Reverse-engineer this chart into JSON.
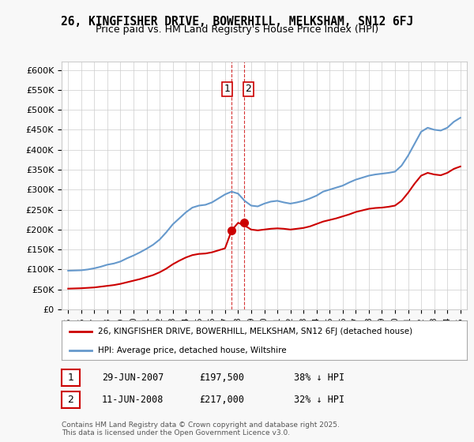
{
  "title": "26, KINGFISHER DRIVE, BOWERHILL, MELKSHAM, SN12 6FJ",
  "subtitle": "Price paid vs. HM Land Registry's House Price Index (HPI)",
  "legend_line1": "26, KINGFISHER DRIVE, BOWERHILL, MELKSHAM, SN12 6FJ (detached house)",
  "legend_line2": "HPI: Average price, detached house, Wiltshire",
  "footnote": "Contains HM Land Registry data © Crown copyright and database right 2025.\nThis data is licensed under the Open Government Licence v3.0.",
  "purchase1_date": "29-JUN-2007",
  "purchase1_price": 197500,
  "purchase1_hpi": "38% ↓ HPI",
  "purchase2_date": "11-JUN-2008",
  "purchase2_price": 217000,
  "purchase2_hpi": "32% ↓ HPI",
  "purchase1_x": 2007.49,
  "purchase2_x": 2008.44,
  "red_color": "#cc0000",
  "blue_color": "#6699cc",
  "vline_color": "#cc0000",
  "ylim": [
    0,
    620000
  ],
  "yticks": [
    0,
    50000,
    100000,
    150000,
    200000,
    250000,
    300000,
    350000,
    400000,
    450000,
    500000,
    550000,
    600000
  ],
  "xlim": [
    1994.5,
    2025.5
  ],
  "background_color": "#f8f8f8",
  "plot_bg": "#ffffff",
  "hpi_years": [
    1995,
    1995.5,
    1996,
    1996.5,
    1997,
    1997.5,
    1998,
    1998.5,
    1999,
    1999.5,
    2000,
    2000.5,
    2001,
    2001.5,
    2002,
    2002.5,
    2003,
    2003.5,
    2004,
    2004.5,
    2005,
    2005.5,
    2006,
    2006.5,
    2007,
    2007.5,
    2008,
    2008.5,
    2009,
    2009.5,
    2010,
    2010.5,
    2011,
    2011.5,
    2012,
    2012.5,
    2013,
    2013.5,
    2014,
    2014.5,
    2015,
    2015.5,
    2016,
    2016.5,
    2017,
    2017.5,
    2018,
    2018.5,
    2019,
    2019.5,
    2020,
    2020.5,
    2021,
    2021.5,
    2022,
    2022.5,
    2023,
    2023.5,
    2024,
    2024.5,
    2025
  ],
  "hpi_values": [
    97000,
    97500,
    98000,
    100000,
    103000,
    107000,
    112000,
    115000,
    120000,
    128000,
    135000,
    143000,
    152000,
    162000,
    175000,
    193000,
    213000,
    228000,
    243000,
    255000,
    260000,
    262000,
    268000,
    278000,
    288000,
    295000,
    290000,
    272000,
    260000,
    258000,
    265000,
    270000,
    272000,
    268000,
    265000,
    268000,
    272000,
    278000,
    285000,
    295000,
    300000,
    305000,
    310000,
    318000,
    325000,
    330000,
    335000,
    338000,
    340000,
    342000,
    345000,
    360000,
    385000,
    415000,
    445000,
    455000,
    450000,
    448000,
    455000,
    470000,
    480000
  ],
  "price_years": [
    1995,
    1995.5,
    1996,
    1996.5,
    1997,
    1997.5,
    1998,
    1998.5,
    1999,
    1999.5,
    2000,
    2000.5,
    2001,
    2001.5,
    2002,
    2002.5,
    2003,
    2003.5,
    2004,
    2004.5,
    2005,
    2005.5,
    2006,
    2006.5,
    2007,
    2007.5,
    2008,
    2008.5,
    2009,
    2009.5,
    2010,
    2010.5,
    2011,
    2011.5,
    2012,
    2012.5,
    2013,
    2013.5,
    2014,
    2014.5,
    2015,
    2015.5,
    2016,
    2016.5,
    2017,
    2017.5,
    2018,
    2018.5,
    2019,
    2019.5,
    2020,
    2020.5,
    2021,
    2021.5,
    2022,
    2022.5,
    2023,
    2023.5,
    2024,
    2024.5,
    2025
  ],
  "price_values": [
    52000,
    52500,
    53000,
    54000,
    55000,
    57000,
    59000,
    61000,
    64000,
    68000,
    72000,
    76000,
    81000,
    86000,
    93000,
    102000,
    113000,
    122000,
    130000,
    136000,
    139000,
    140000,
    143000,
    148000,
    153000,
    197500,
    217000,
    210000,
    200000,
    198000,
    200000,
    202000,
    203000,
    202000,
    200000,
    202000,
    204000,
    208000,
    214000,
    220000,
    224000,
    228000,
    233000,
    238000,
    244000,
    248000,
    252000,
    254000,
    255000,
    257000,
    260000,
    272000,
    292000,
    315000,
    335000,
    342000,
    338000,
    336000,
    342000,
    352000,
    358000
  ]
}
